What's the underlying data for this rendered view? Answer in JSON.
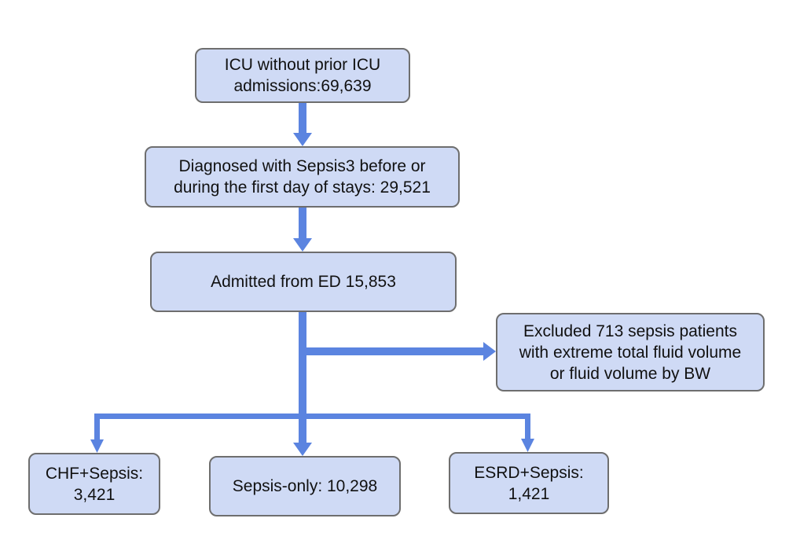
{
  "colors": {
    "box_fill": "#cfdaf5",
    "box_border": "#6e6e6e",
    "arrow": "#5b84e0",
    "text": "#111111"
  },
  "nodes": {
    "icu": {
      "text": "ICU without prior ICU\nadmissions:69,639"
    },
    "sepsis3": {
      "text": "Diagnosed with Sepsis3 before or\nduring the first day of stays: 29,521"
    },
    "ed": {
      "text": "Admitted from ED 15,853"
    },
    "excluded": {
      "text": "Excluded 713 sepsis patients\nwith extreme total fluid volume\nor fluid volume by BW"
    },
    "chf": {
      "text": "CHF+Sepsis:\n3,421"
    },
    "sepsis_only": {
      "text": "Sepsis-only: 10,298"
    },
    "esrd": {
      "text": "ESRD+Sepsis:\n1,421"
    }
  },
  "edges": [
    {
      "from": "icu",
      "to": "sepsis3"
    },
    {
      "from": "sepsis3",
      "to": "ed"
    },
    {
      "from": "ed",
      "to": "excluded"
    },
    {
      "from": "ed",
      "to": "chf"
    },
    {
      "from": "ed",
      "to": "sepsis_only"
    },
    {
      "from": "ed",
      "to": "esrd"
    }
  ]
}
